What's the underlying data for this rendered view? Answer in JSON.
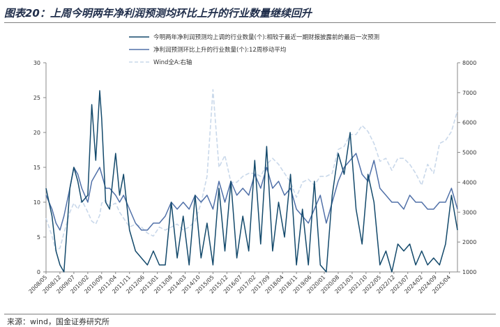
{
  "figure": {
    "title": "图表20：上周今明两年净利润预测均环比上升的行业数量继续回升",
    "source": "来源：wind，国金证券研究所"
  },
  "chart_data": {
    "type": "line",
    "xlabel": "",
    "ylabel_left": "",
    "ylabel_right": "",
    "ylim_left": [
      0,
      30
    ],
    "yticks_left": [
      0,
      5,
      10,
      15,
      20,
      25,
      30
    ],
    "ylim_right": [
      1000,
      8000
    ],
    "yticks_right": [
      1000,
      2000,
      3000,
      4000,
      5000,
      6000,
      7000,
      8000
    ],
    "x_tick_labels": [
      "2008/05",
      "2008/12",
      "2009/07",
      "2010/02",
      "2010/09",
      "2011/04",
      "2011/11",
      "2012/06",
      "2013/01",
      "2013/08",
      "2014/03",
      "2014/10",
      "2015/05",
      "2015/12",
      "2016/07",
      "2017/02",
      "2017/09",
      "2018/04",
      "2018/11",
      "2019/06",
      "2020/01",
      "2020/08",
      "2021/03",
      "2021/10",
      "2022/05",
      "2022/12",
      "2023/07",
      "2024/02",
      "2024/09",
      "2025/04"
    ],
    "legend_position": "top-center",
    "grid": false,
    "series": [
      {
        "name": "今明两年净利润预测均上调的行业数量(个):相较于最近一期财报披露前的最后一次预测",
        "axis": "left",
        "color": "#13496b",
        "style": "solid",
        "x": [
          "2008/05",
          "2008/08",
          "2008/10",
          "2008/12",
          "2009/02",
          "2009/05",
          "2009/07",
          "2009/09",
          "2009/11",
          "2010/02",
          "2010/04",
          "2010/06",
          "2010/08",
          "2010/09",
          "2010/11",
          "2011/01",
          "2011/04",
          "2011/06",
          "2011/08",
          "2011/11",
          "2012/02",
          "2012/05",
          "2012/08",
          "2012/11",
          "2013/02",
          "2013/05",
          "2013/08",
          "2013/11",
          "2014/02",
          "2014/05",
          "2014/08",
          "2014/11",
          "2015/02",
          "2015/05",
          "2015/08",
          "2015/11",
          "2016/02",
          "2016/05",
          "2016/08",
          "2016/11",
          "2017/02",
          "2017/05",
          "2017/08",
          "2017/11",
          "2018/02",
          "2018/05",
          "2018/08",
          "2018/11",
          "2019/02",
          "2019/05",
          "2019/08",
          "2019/11",
          "2020/02",
          "2020/05",
          "2020/08",
          "2020/11",
          "2021/02",
          "2021/05",
          "2021/08",
          "2021/11",
          "2022/02",
          "2022/05",
          "2022/08",
          "2022/11",
          "2023/02",
          "2023/05",
          "2023/08",
          "2023/11",
          "2024/02",
          "2024/05",
          "2024/08",
          "2024/11",
          "2025/02",
          "2025/05",
          "2025/08"
        ],
        "values": [
          12,
          8,
          3,
          1,
          0,
          12,
          15,
          13,
          10,
          11,
          24,
          16,
          26,
          22,
          10,
          9,
          17,
          11,
          14,
          6,
          3,
          2,
          1,
          3,
          1,
          1,
          10,
          2,
          8,
          1,
          11,
          2,
          7,
          1,
          12,
          3,
          13,
          2,
          8,
          3,
          16,
          4,
          18,
          3,
          10,
          5,
          14,
          1,
          9,
          1,
          13,
          1,
          0,
          11,
          17,
          14,
          20,
          9,
          4,
          14,
          10,
          1,
          3,
          0,
          4,
          3,
          4,
          1,
          3,
          1,
          2,
          1,
          4,
          11,
          6
        ]
      },
      {
        "name": "净利润预测环比上升的行业数量(个):12周移动平均",
        "axis": "left",
        "color": "#5070a8",
        "style": "solid",
        "x": [
          "2008/05",
          "2008/08",
          "2008/10",
          "2008/12",
          "2009/02",
          "2009/05",
          "2009/07",
          "2009/09",
          "2009/11",
          "2010/02",
          "2010/04",
          "2010/06",
          "2010/08",
          "2010/09",
          "2010/11",
          "2011/01",
          "2011/04",
          "2011/06",
          "2011/08",
          "2011/11",
          "2012/02",
          "2012/05",
          "2012/08",
          "2012/11",
          "2013/02",
          "2013/05",
          "2013/08",
          "2013/11",
          "2014/02",
          "2014/05",
          "2014/08",
          "2014/11",
          "2015/02",
          "2015/05",
          "2015/08",
          "2015/11",
          "2016/02",
          "2016/05",
          "2016/08",
          "2016/11",
          "2017/02",
          "2017/05",
          "2017/08",
          "2017/11",
          "2018/02",
          "2018/05",
          "2018/08",
          "2018/11",
          "2019/02",
          "2019/05",
          "2019/08",
          "2019/11",
          "2020/02",
          "2020/05",
          "2020/08",
          "2020/11",
          "2021/02",
          "2021/05",
          "2021/08",
          "2021/11",
          "2022/02",
          "2022/05",
          "2022/08",
          "2022/11",
          "2023/02",
          "2023/05",
          "2023/08",
          "2023/11",
          "2024/02",
          "2024/05",
          "2024/08",
          "2024/11",
          "2025/02",
          "2025/05",
          "2025/08"
        ],
        "values": [
          11,
          9,
          7,
          6,
          8,
          12,
          15,
          14,
          12,
          10,
          13,
          14,
          15,
          14,
          12,
          12,
          11,
          10,
          11,
          9,
          7,
          6,
          6,
          7,
          7,
          8,
          10,
          9,
          10,
          9,
          11,
          10,
          11,
          9,
          13,
          10,
          13,
          11,
          12,
          11,
          14,
          12,
          15,
          12,
          13,
          11,
          12,
          9,
          8,
          7,
          9,
          11,
          7,
          10,
          13,
          15,
          16,
          17,
          14,
          13,
          16,
          12,
          11,
          10,
          10,
          9,
          11,
          10,
          10,
          9,
          9,
          10,
          10,
          12,
          9
        ]
      },
      {
        "name": "Wind全A:右轴",
        "axis": "right",
        "color": "#c9d8ea",
        "style": "dashed",
        "x": [
          "2008/05",
          "2008/08",
          "2008/10",
          "2008/12",
          "2009/02",
          "2009/05",
          "2009/07",
          "2009/09",
          "2009/11",
          "2010/02",
          "2010/04",
          "2010/06",
          "2010/08",
          "2010/09",
          "2010/11",
          "2011/01",
          "2011/04",
          "2011/06",
          "2011/08",
          "2011/11",
          "2012/02",
          "2012/05",
          "2012/08",
          "2012/11",
          "2013/02",
          "2013/05",
          "2013/08",
          "2013/11",
          "2014/02",
          "2014/05",
          "2014/08",
          "2014/11",
          "2015/02",
          "2015/05",
          "2015/08",
          "2015/11",
          "2016/02",
          "2016/05",
          "2016/08",
          "2016/11",
          "2017/02",
          "2017/05",
          "2017/08",
          "2017/11",
          "2018/02",
          "2018/05",
          "2018/08",
          "2018/11",
          "2019/02",
          "2019/05",
          "2019/08",
          "2019/11",
          "2020/02",
          "2020/05",
          "2020/08",
          "2020/11",
          "2021/02",
          "2021/05",
          "2021/08",
          "2021/11",
          "2022/02",
          "2022/05",
          "2022/08",
          "2022/11",
          "2023/02",
          "2023/05",
          "2023/08",
          "2023/11",
          "2024/02",
          "2024/05",
          "2024/08",
          "2024/11",
          "2025/02",
          "2025/05",
          "2025/08"
        ],
        "values": [
          2800,
          2200,
          1700,
          1800,
          2300,
          3000,
          3300,
          3100,
          3400,
          3000,
          2700,
          2600,
          2900,
          3300,
          3400,
          3200,
          3300,
          3000,
          2800,
          2500,
          2600,
          2500,
          2300,
          2200,
          2500,
          2400,
          2500,
          2600,
          2400,
          2500,
          2700,
          3300,
          4200,
          7100,
          4500,
          4900,
          4000,
          4000,
          4200,
          4300,
          4300,
          4200,
          4600,
          4800,
          4600,
          4300,
          4000,
          3500,
          4000,
          4100,
          3900,
          4200,
          4200,
          4300,
          5100,
          5200,
          5600,
          5600,
          5900,
          5700,
          5300,
          4700,
          4800,
          4400,
          4800,
          4800,
          4600,
          4300,
          3900,
          4600,
          4300,
          5300,
          5400,
          5700,
          6400
        ]
      }
    ]
  }
}
